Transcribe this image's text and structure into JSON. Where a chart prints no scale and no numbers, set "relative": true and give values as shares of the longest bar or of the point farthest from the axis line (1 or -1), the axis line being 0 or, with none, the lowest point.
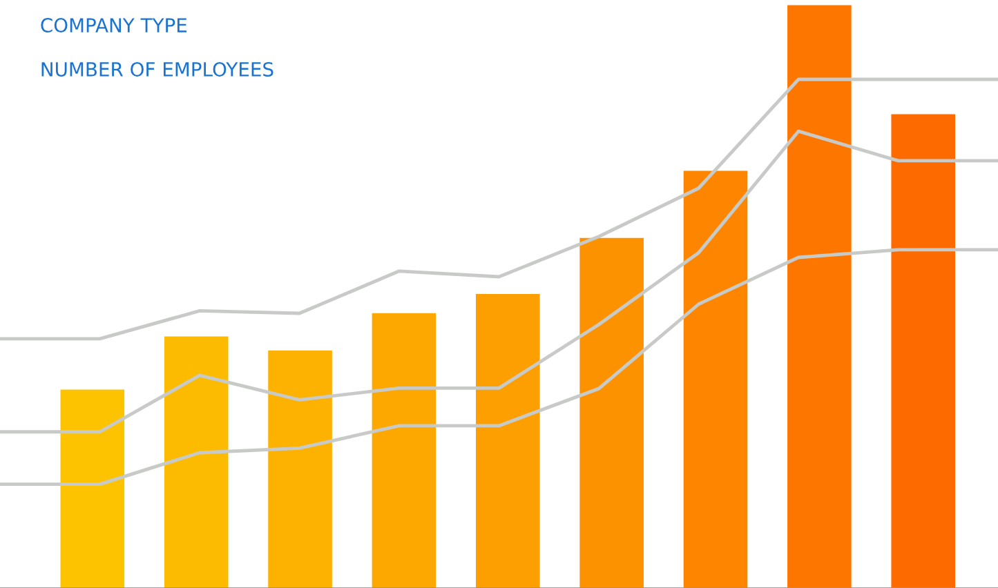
{
  "chart_data": [
    {
      "type": "bar",
      "title": "COMPANY TYPE",
      "subtitle": "NUMBER OF EMPLOYEES",
      "relative": true,
      "categories": [
        null,
        null,
        null,
        null,
        null,
        null,
        null,
        null,
        null
      ],
      "colors": [
        "#fdc300",
        "#fdbb00",
        "#fdb100",
        "#fda800",
        "#fd9f00",
        "#fd9200",
        "#fd8500",
        "#fd7600",
        "#fd6a00"
      ],
      "values": [
        0.341,
        0.432,
        0.408,
        0.472,
        0.505,
        0.601,
        0.716,
        1,
        0.813
      ]
    },
    {
      "type": "line",
      "relative": true,
      "marker": "none",
      "line_style": "solid",
      "categories": [
        null,
        null,
        null,
        null,
        null,
        null,
        null,
        null,
        null,
        null,
        null
      ],
      "series": [
        {
          "color": "#c8cac8",
          "values": [
            0.49,
            0.49,
            0.545,
            0.54,
            0.623,
            0.612,
            0.691,
            0.786,
            1,
            1,
            1
          ]
        },
        {
          "color": "#c8cac8",
          "values": [
            0.307,
            0.307,
            0.418,
            0.37,
            0.393,
            0.393,
            0.518,
            0.659,
            0.898,
            0.84,
            0.84
          ]
        },
        {
          "color": "#c8cac8",
          "values": [
            0.204,
            0.204,
            0.266,
            0.275,
            0.319,
            0.319,
            0.392,
            0.558,
            0.65,
            0.665,
            0.665
          ]
        }
      ]
    }
  ]
}
